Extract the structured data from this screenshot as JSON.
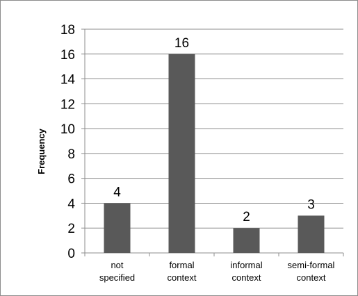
{
  "chart_data": {
    "type": "bar",
    "title": "",
    "xlabel": "",
    "ylabel": "Frequency",
    "ylim": [
      0,
      18
    ],
    "ytick_step": 2,
    "grid": true,
    "legend": "none",
    "bar_color": "#595959",
    "grid_color": "#8c8c8c",
    "categories": [
      [
        "not",
        "specified"
      ],
      [
        "formal",
        "context"
      ],
      [
        "informal",
        "context"
      ],
      [
        "semi-formal",
        "context"
      ]
    ],
    "values": [
      4,
      16,
      2,
      3
    ]
  }
}
